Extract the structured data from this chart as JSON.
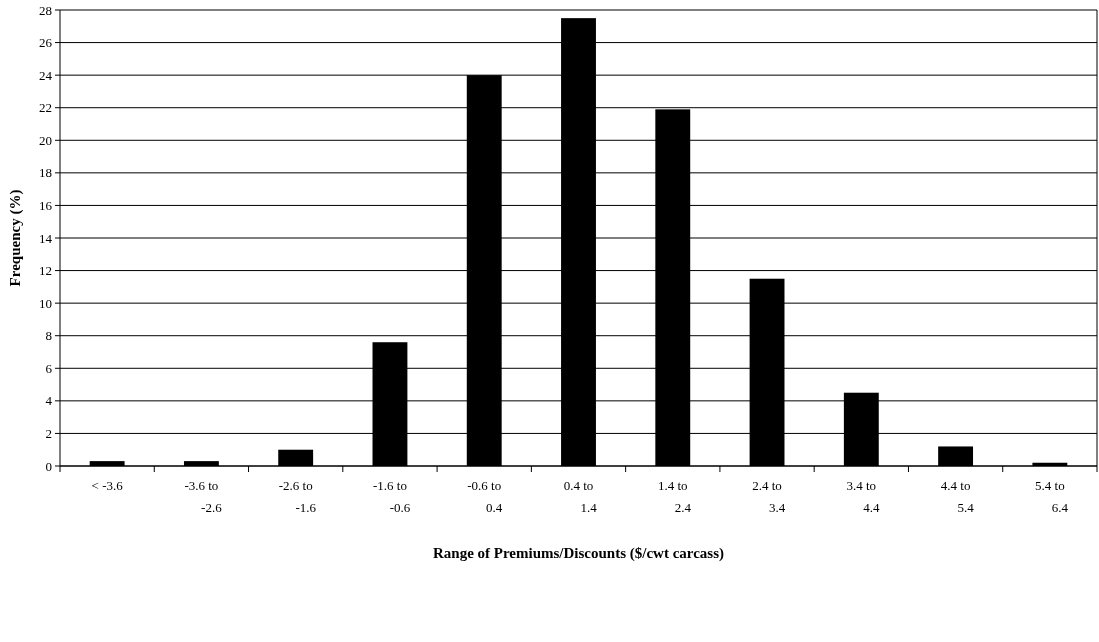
{
  "chart_data": {
    "type": "bar",
    "xlabel": "Range of Premiums/Discounts ($/cwt carcass)",
    "ylabel": "Frequency (%)",
    "categories": [
      "< -3.6",
      "-3.6 to -2.6",
      "-2.6 to -1.6",
      "-1.6 to -0.6",
      "-0.6 to 0.4",
      "0.4 to 1.4",
      "1.4 to 2.4",
      "2.4 to 3.4",
      "3.4 to 4.4",
      "4.4 to 5.4",
      "5.4 to 6.4"
    ],
    "values": [
      0.3,
      0.3,
      1.0,
      7.6,
      24.0,
      27.5,
      21.9,
      11.5,
      4.5,
      1.2,
      0.2
    ],
    "color": "#000000",
    "ylim": [
      0,
      28
    ],
    "yticks": [
      0,
      2,
      4,
      6,
      8,
      10,
      12,
      14,
      16,
      18,
      20,
      22,
      24,
      26,
      28
    ],
    "grid": "y"
  }
}
